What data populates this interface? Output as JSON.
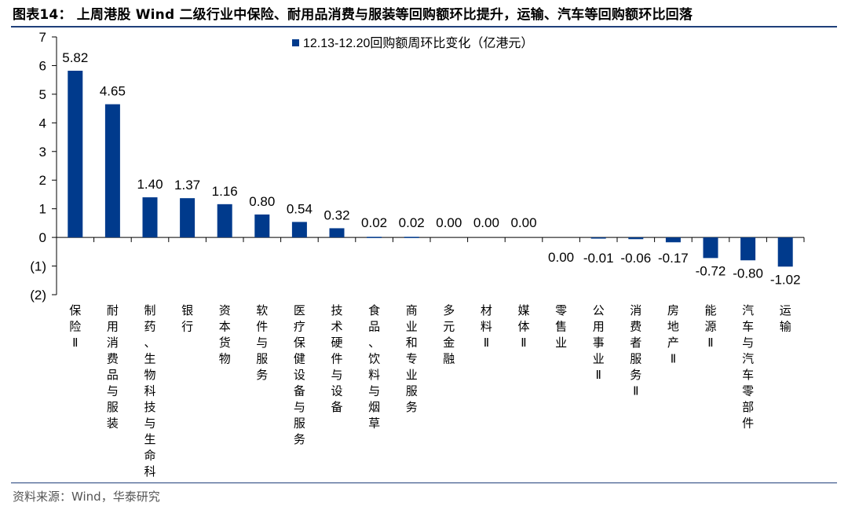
{
  "title": "图表14：   上周港股 Wind 二级行业中保险、耐用品消费与服装等回购额环比提升，运输、汽车等回购额环比回落",
  "source": "资料来源：Wind，华泰研究",
  "colors": {
    "bar": "#003a8c",
    "rule": "#1f3f7a",
    "axis": "#000000"
  },
  "chart_data": {
    "type": "bar",
    "categories": [
      "保险Ⅱ",
      "耐用消费品与服装",
      "制药、生物科技与生命科学",
      "银行",
      "资本货物",
      "软件与服务",
      "医疗保健设备与服务",
      "技术硬件与设备",
      "食品、饮料与烟草",
      "商业和专业服务",
      "多元金融",
      "材料Ⅱ",
      "媒体Ⅱ",
      "零售业",
      "公用事业Ⅱ",
      "消费者服务Ⅱ",
      "房地产Ⅱ",
      "能源Ⅱ",
      "汽车与汽车零部件",
      "运输"
    ],
    "series": [
      {
        "name": "12.13-12.20回购额周环比变化（亿港元）",
        "values": [
          5.82,
          4.65,
          1.4,
          1.37,
          1.16,
          0.8,
          0.54,
          0.32,
          0.02,
          0.02,
          0.0,
          0.0,
          0.0,
          0.0,
          -0.01,
          -0.06,
          -0.17,
          -0.72,
          -0.8,
          -1.02
        ]
      }
    ],
    "data_labels": [
      "5.82",
      "4.65",
      "1.40",
      "1.37",
      "1.16",
      "0.80",
      "0.54",
      "0.32",
      "0.02",
      "0.02",
      "0.00",
      "0.00",
      "0.00",
      "0.00",
      "-0.01",
      "-0.06",
      "-0.17",
      "-0.72",
      "-0.80",
      "-1.02"
    ],
    "ylim": [
      -2,
      7
    ],
    "yticks": [
      -2,
      -1,
      0,
      1,
      2,
      3,
      4,
      5,
      6,
      7
    ],
    "ytick_labels": [
      "(2)",
      "(1)",
      "0",
      "1",
      "2",
      "3",
      "4",
      "5",
      "6",
      "7"
    ],
    "legend_position": "top-center",
    "grid": false
  }
}
